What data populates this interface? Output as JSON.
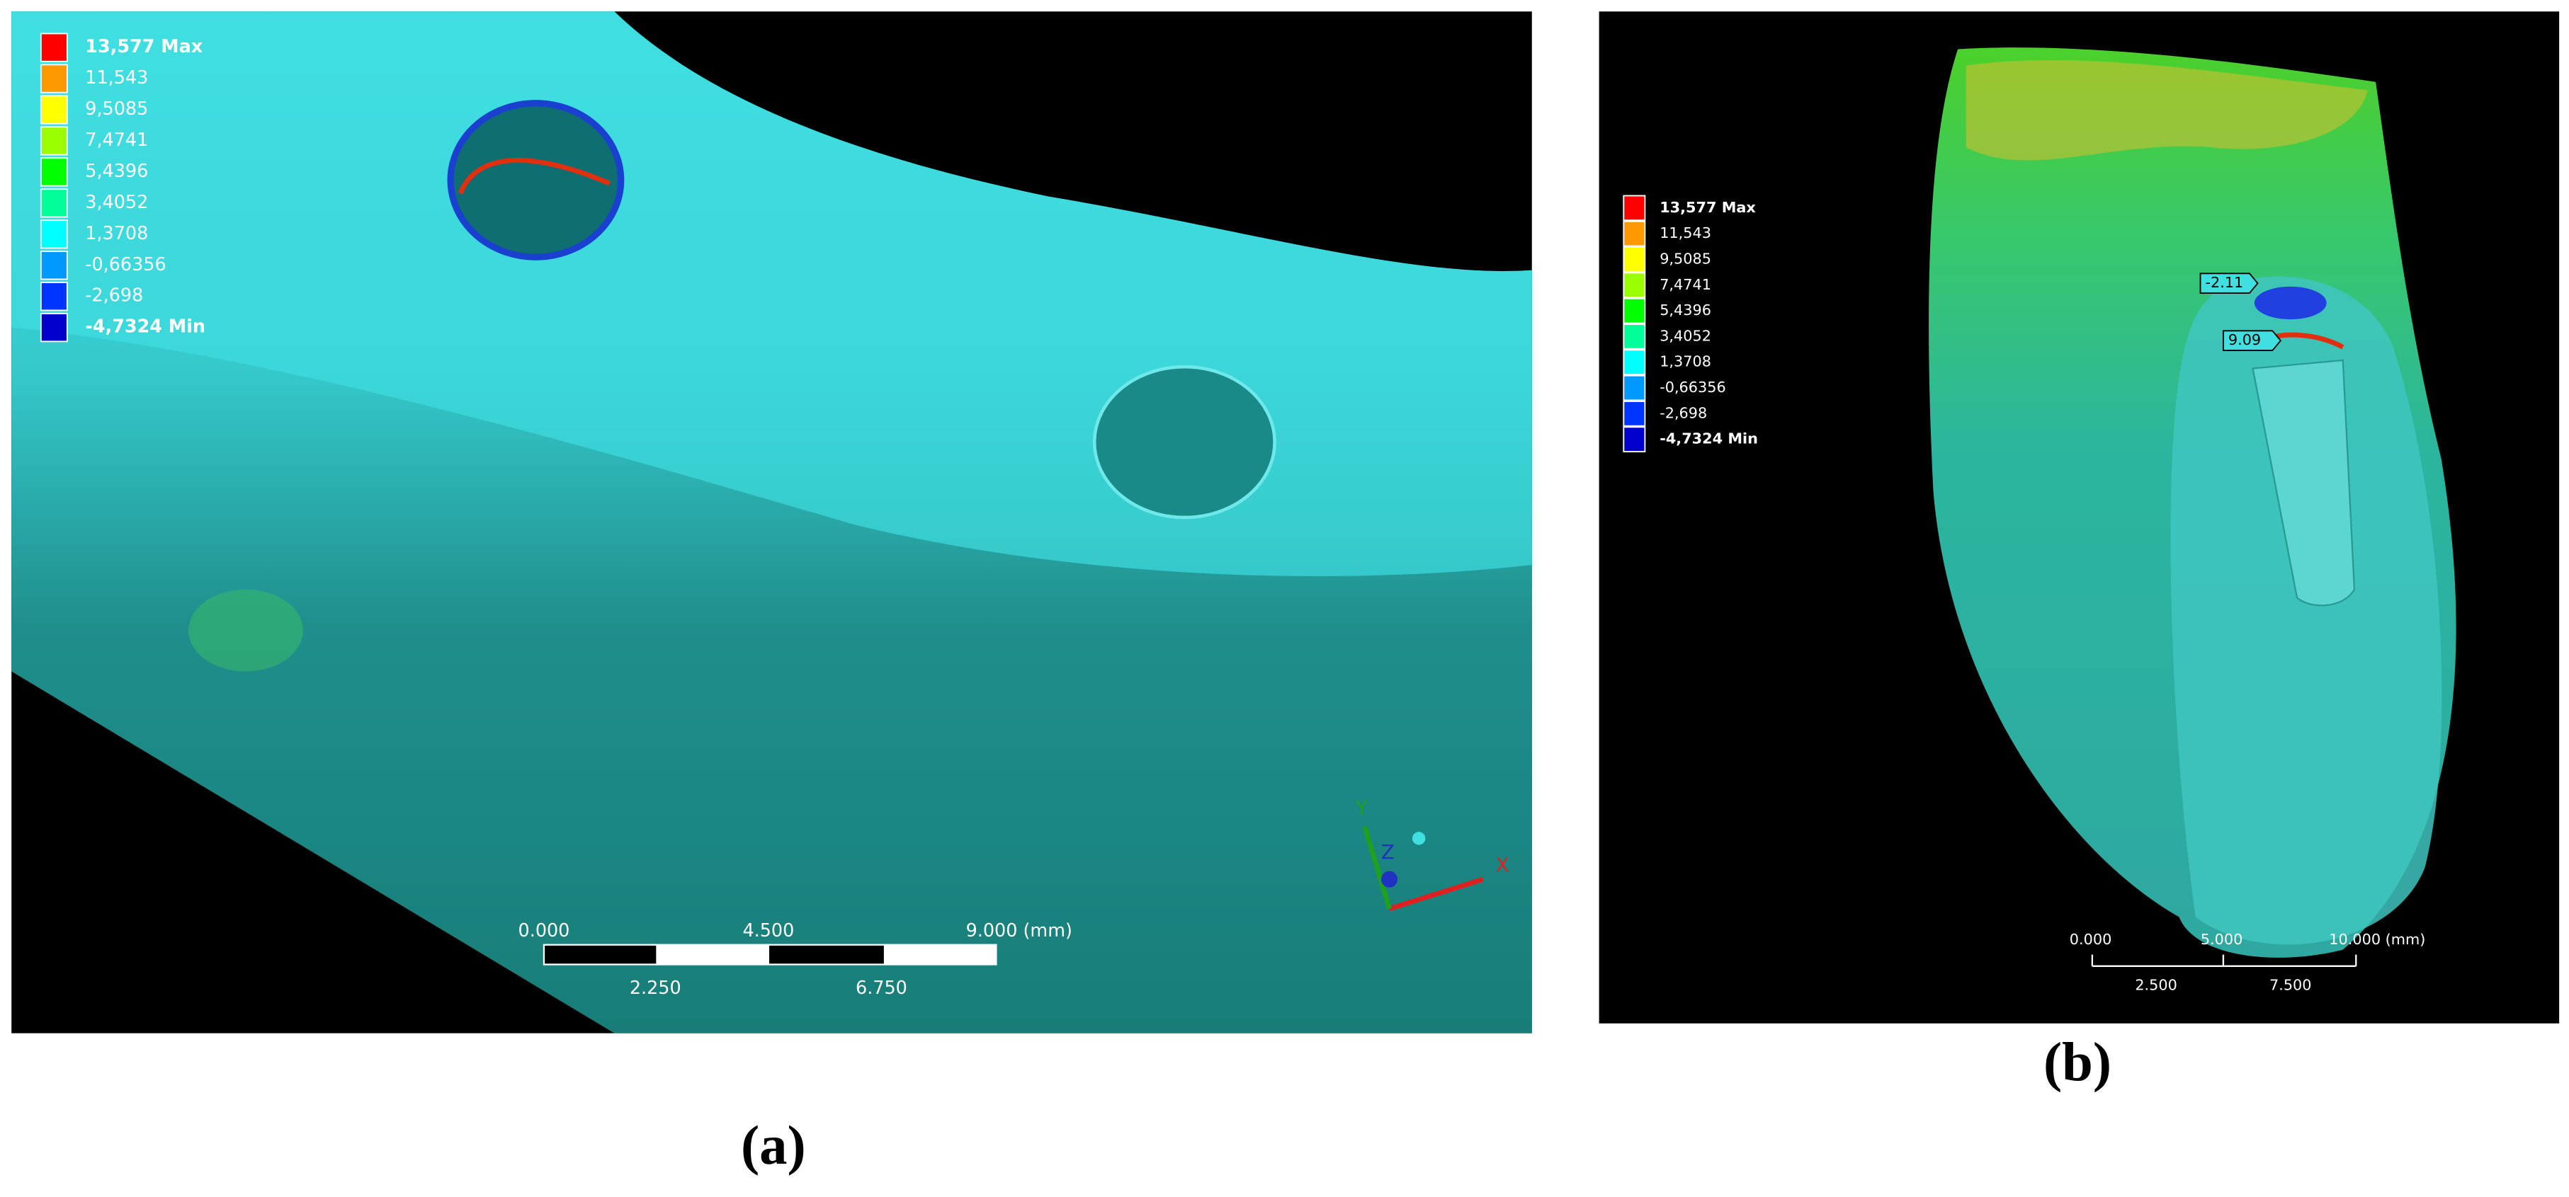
{
  "panels": [
    {
      "legend": [
        "13,577 Max",
        "11,543",
        "9,5085",
        "7,4741",
        "5,4396",
        "3,4052",
        "1,3708",
        "-0,66356",
        "-2,698",
        "-4,7324 Min"
      ],
      "scale_bar": {
        "top": [
          "0.000",
          "4.500",
          "9.000 (mm)"
        ],
        "bottom": [
          "2.250",
          "6.750"
        ]
      },
      "axes": [
        "Y",
        "Z",
        "X"
      ],
      "caption": "(a)"
    },
    {
      "legend": [
        "13,577 Max",
        "11,543",
        "9,5085",
        "7,4741",
        "5,4396",
        "3,4052",
        "1,3708",
        "-0,66356",
        "-2,698",
        "-4,7324 Min"
      ],
      "scale_bar": {
        "top": [
          "0.000",
          "5.000",
          "10.000 (mm)"
        ],
        "bottom": [
          "2.500",
          "7.500"
        ]
      },
      "probes": [
        "-2.11",
        "9.09"
      ],
      "caption": "(b)"
    }
  ]
}
